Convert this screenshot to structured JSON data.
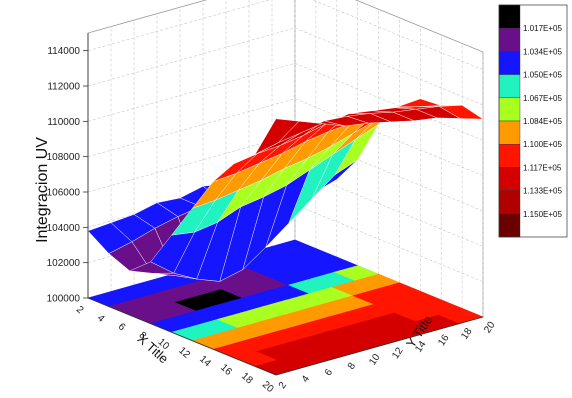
{
  "chart_data": {
    "type": "surface3d",
    "zlabel": "Integracion UV",
    "xlabel": "X Title",
    "ylabel": "Y Title",
    "zlim": [
      100000,
      115000
    ],
    "z_ticks": [
      "100000",
      "102000",
      "104000",
      "106000",
      "108000",
      "110000",
      "112000",
      "114000"
    ],
    "x_ticks": [
      "2",
      "4",
      "6",
      "8",
      "10",
      "12",
      "14",
      "16",
      "18",
      "20"
    ],
    "y_ticks": [
      "2",
      "4",
      "6",
      "8",
      "10",
      "12",
      "14",
      "16",
      "18",
      "20"
    ],
    "grid": true,
    "surface": {
      "x": [
        2,
        4,
        6,
        8,
        10,
        12,
        14,
        16,
        18,
        20
      ],
      "y": [
        2,
        4,
        6,
        8,
        10,
        12,
        14,
        16,
        18,
        20
      ],
      "z_approx": [
        [
          103800,
          103900,
          104000,
          104300,
          104200,
          104500,
          104300,
          104200,
          104000,
          103900
        ],
        [
          103000,
          103300,
          103700,
          104000,
          104200,
          104100,
          104000,
          104200,
          104100,
          104000
        ],
        [
          102500,
          102000,
          101500,
          101200,
          101800,
          102300,
          102800,
          103500,
          104000,
          104400
        ],
        [
          103500,
          102500,
          101800,
          101300,
          101600,
          102500,
          103500,
          104500,
          105500,
          106000
        ],
        [
          105500,
          105300,
          105500,
          106000,
          106200,
          106500,
          107000,
          107500,
          108000,
          108500
        ],
        [
          107500,
          107600,
          107800,
          108000,
          108300,
          108500,
          108800,
          109200,
          109600,
          110000
        ],
        [
          109500,
          109600,
          109800,
          110000,
          110300,
          110500,
          110600,
          110700,
          110800,
          110900
        ],
        [
          111000,
          111200,
          111300,
          111500,
          111800,
          112000,
          111800,
          111600,
          111300,
          111000
        ],
        [
          112000,
          112300,
          112500,
          112800,
          112700,
          112500,
          112200,
          112000,
          111800,
          111500
        ],
        [
          114500,
          114000,
          113500,
          113000,
          112800,
          112500,
          112200,
          112000,
          111600,
          111200
        ]
      ]
    },
    "legend": {
      "position": "right",
      "colors": [
        "#000000",
        "#6a0f8a",
        "#1515ff",
        "#20f2c0",
        "#a8ff20",
        "#ff9a00",
        "#ff1500",
        "#d40000",
        "#b00000",
        "#6a0000"
      ],
      "labels": [
        "1.017E+05",
        "1.034E+05",
        "1.050E+05",
        "1.067E+05",
        "1.084E+05",
        "1.100E+05",
        "1.117E+05",
        "1.133E+05",
        "1.150E+05"
      ]
    }
  }
}
